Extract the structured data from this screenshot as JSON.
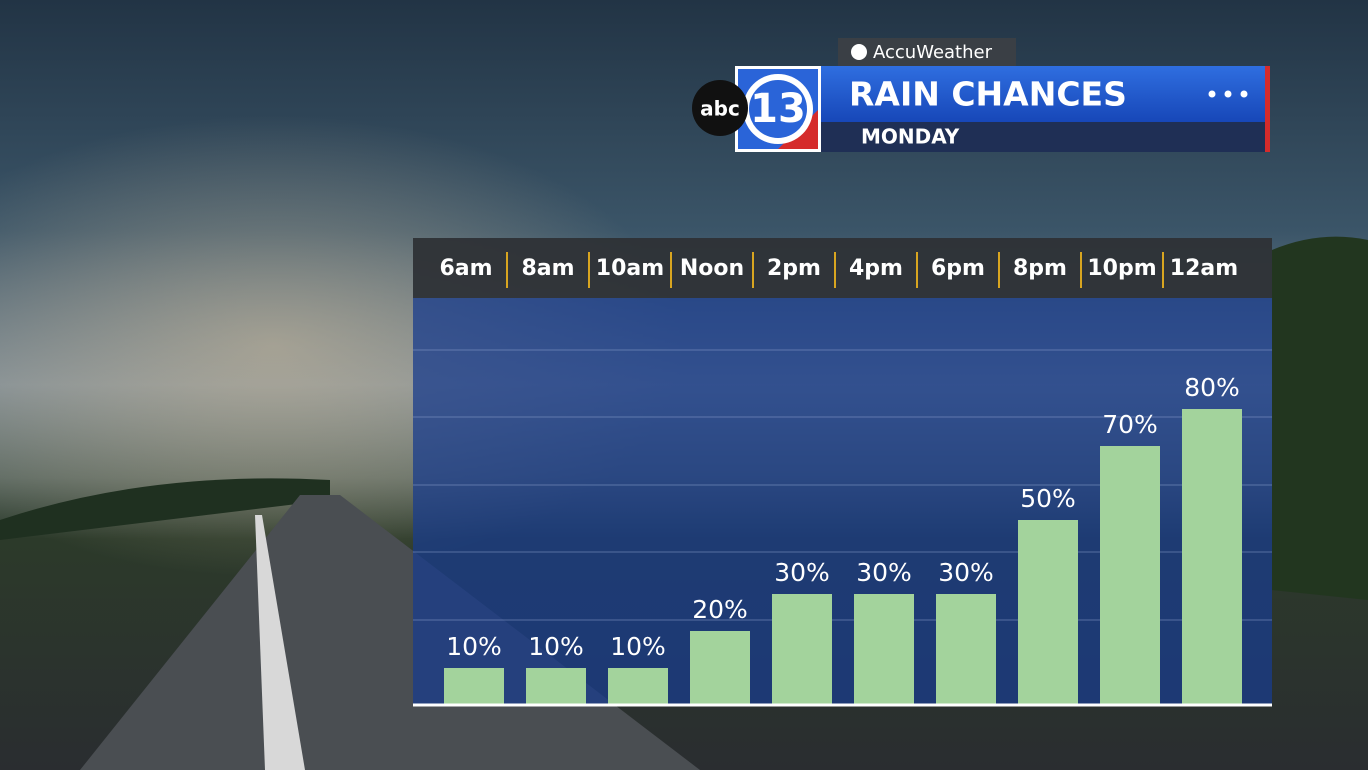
{
  "chart_data": {
    "type": "bar",
    "brand": "AccuWeather",
    "network": "abc",
    "channel": "13",
    "title": "RAIN CHANCES",
    "subtitle": "MONDAY",
    "categories": [
      "6am",
      "8am",
      "10am",
      "Noon",
      "2pm",
      "4pm",
      "6pm",
      "8pm",
      "10pm",
      "12am"
    ],
    "values": [
      10,
      10,
      10,
      20,
      30,
      30,
      30,
      50,
      70,
      80
    ],
    "value_labels": [
      "10%",
      "10%",
      "10%",
      "20%",
      "30%",
      "30%",
      "30%",
      "50%",
      "70%",
      "80%"
    ],
    "color": "#a3d39c",
    "ylim": [
      0,
      110
    ]
  }
}
